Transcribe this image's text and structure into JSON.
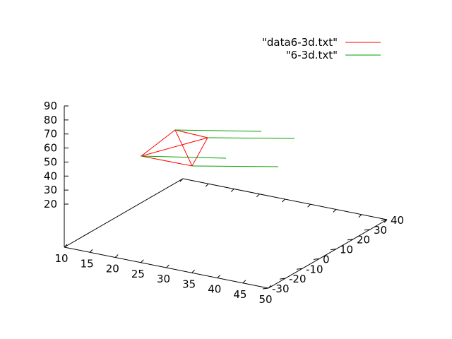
{
  "chart_data": {
    "type": "line",
    "subtype": "3d-surface-plot",
    "title": "",
    "xlabel": "",
    "ylabel": "",
    "zlabel": "",
    "x_ticks": [
      "10",
      "15",
      "20",
      "25",
      "30",
      "35",
      "40",
      "45",
      "50"
    ],
    "y_ticks": [
      "-30",
      "-20",
      "-10",
      "0",
      "10",
      "20",
      "30",
      "40"
    ],
    "z_ticks": [
      "20",
      "30",
      "40",
      "50",
      "60",
      "70",
      "80",
      "90"
    ],
    "xlim": [
      10,
      50
    ],
    "ylim": [
      -30,
      40
    ],
    "zlim": [
      20,
      90
    ],
    "legend_position": "top-right",
    "series": [
      {
        "name": "\"data6-3d.txt\"",
        "color": "#ff0000",
        "segments": [
          [
            [
              248,
              184
            ],
            [
              294,
              195
            ],
            [
              272,
              235
            ],
            [
              200,
              221
            ],
            [
              248,
              184
            ],
            [
              272,
              235
            ]
          ],
          [
            [
              200,
              221
            ],
            [
              294,
              195
            ]
          ]
        ]
      },
      {
        "name": "\"6-3d.txt\"",
        "color": "#00a000",
        "segments": [
          [
            [
              248,
              184
            ],
            [
              370,
              186
            ]
          ],
          [
            [
              294,
              195
            ],
            [
              417,
              196
            ]
          ],
          [
            [
              200,
              221
            ],
            [
              320,
              224
            ]
          ],
          [
            [
              272,
              235
            ],
            [
              394,
              236
            ]
          ]
        ]
      }
    ]
  }
}
